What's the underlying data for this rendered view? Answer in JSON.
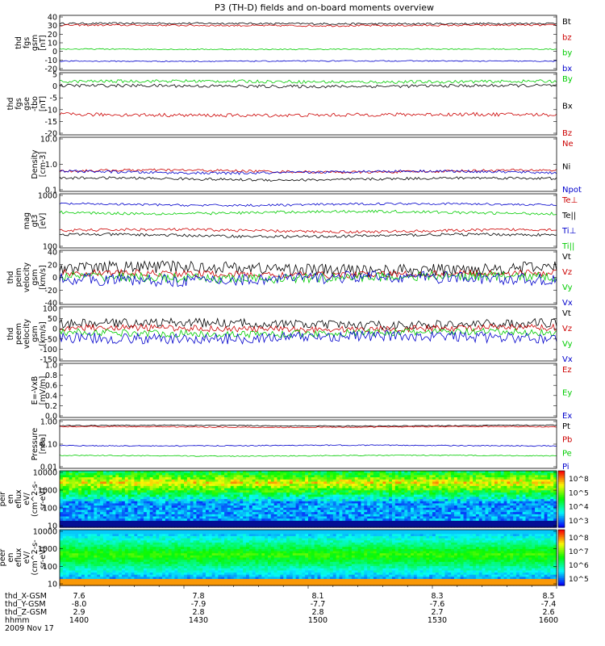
{
  "title": "P3 (TH-D) fields and on-board moments overview",
  "colors": {
    "black": "#000000",
    "red": "#cc0000",
    "green": "#00cc00",
    "blue": "#0000cc"
  },
  "chart_data": [
    {
      "type": "line",
      "ylabel": [
        "thd",
        "fgs",
        "gsm",
        "[nT]"
      ],
      "yticks": [
        "40",
        "30",
        "20",
        "10",
        "0",
        "-10",
        "-20"
      ],
      "ylim": [
        -20,
        40
      ],
      "series": [
        {
          "name": "Bt",
          "color": "#000000",
          "level": 31,
          "noise": 1
        },
        {
          "name": "bz",
          "color": "#cc0000",
          "level": 29,
          "noise": 1
        },
        {
          "name": "by",
          "color": "#00cc00",
          "level": 3,
          "noise": 0.6
        },
        {
          "name": "bx",
          "color": "#0000cc",
          "level": -10,
          "noise": 0.6
        }
      ]
    },
    {
      "type": "line",
      "ylabel": [
        "thd",
        "fgs",
        "gse",
        "-tbo",
        "[nT]"
      ],
      "yticks": [
        "5",
        "0",
        "-5",
        "-10",
        "-15",
        "-20"
      ],
      "ylim": [
        -23,
        5
      ],
      "series": [
        {
          "name": "By",
          "color": "#00cc00",
          "level": 1,
          "noise": 0.7
        },
        {
          "name": "Bx",
          "color": "#000000",
          "level": -1,
          "noise": 0.7
        },
        {
          "name": "Bz",
          "color": "#cc0000",
          "level": -14,
          "noise": 0.8
        }
      ]
    },
    {
      "type": "line",
      "scale": "log",
      "ylabel": [
        "Density",
        "[cm-3]"
      ],
      "yticks": [
        "10.0",
        "1.0",
        "0.1"
      ],
      "ylim": [
        0.1,
        12
      ],
      "series": [
        {
          "name": "Ne",
          "color": "#cc0000",
          "level": 0.6,
          "noise": 0.05
        },
        {
          "name": "Ni",
          "color": "#000000",
          "level": 0.3,
          "noise": 0.05
        },
        {
          "name": "Npot",
          "color": "#0000cc",
          "level": 0.55,
          "noise": 0.05
        }
      ]
    },
    {
      "type": "line",
      "scale": "log",
      "ylabel": [
        "mag",
        "gt3",
        "[eV]"
      ],
      "yticks": [
        "1000",
        "100"
      ],
      "ylim": [
        100,
        9000
      ],
      "series": [
        {
          "name": "Te⊥",
          "color": "#cc0000",
          "level": 420,
          "noise": 0.05
        },
        {
          "name": "Te||",
          "color": "#000000",
          "level": 280,
          "noise": 0.05
        },
        {
          "name": "Ti⊥",
          "color": "#0000cc",
          "level": 3700,
          "noise": 0.04
        },
        {
          "name": "Ti||",
          "color": "#00cc00",
          "level": 1900,
          "noise": 0.05
        }
      ]
    },
    {
      "type": "line",
      "ylabel": [
        "thd",
        "peim",
        "velocity",
        "gsm",
        "[km/s]"
      ],
      "yticks": [
        "40",
        "20",
        "0",
        "-20",
        "-40"
      ],
      "ylim": [
        -40,
        40
      ],
      "series": [
        {
          "name": "Vt",
          "color": "#000000",
          "level": 13,
          "noise": 9
        },
        {
          "name": "Vz",
          "color": "#cc0000",
          "level": 5,
          "noise": 5
        },
        {
          "name": "Vy",
          "color": "#00cc00",
          "level": 0,
          "noise": 7
        },
        {
          "name": "Vx",
          "color": "#0000cc",
          "level": -2,
          "noise": 9
        }
      ]
    },
    {
      "type": "line",
      "ylabel": [
        "thd",
        "peem",
        "velocity",
        "gsm",
        "[km/s]"
      ],
      "yticks": [
        "100",
        "50",
        "0",
        "-50",
        "-100",
        "-150"
      ],
      "ylim": [
        -150,
        150
      ],
      "series": [
        {
          "name": "Vt",
          "color": "#000000",
          "level": 55,
          "noise": 25
        },
        {
          "name": "Vz",
          "color": "#cc0000",
          "level": 30,
          "noise": 18
        },
        {
          "name": "Vy",
          "color": "#00cc00",
          "level": 5,
          "noise": 20
        },
        {
          "name": "Vx",
          "color": "#0000cc",
          "level": -20,
          "noise": 30
        }
      ]
    },
    {
      "type": "line",
      "ylabel": [
        "E=-VxB",
        "[mV/m]"
      ],
      "yticks": [
        "1.0",
        "0.8",
        "0.6",
        "0.4",
        "0.2",
        "0.0"
      ],
      "ylim": [
        0,
        1
      ],
      "series": [
        {
          "name": "Ez",
          "color": "#cc0000"
        },
        {
          "name": "Ey",
          "color": "#00cc00"
        },
        {
          "name": "Ex",
          "color": "#0000cc"
        }
      ]
    },
    {
      "type": "line",
      "scale": "log",
      "ylabel": [
        "Pressure",
        "[nPa]"
      ],
      "yticks": [
        "1.00",
        "0.10",
        "0.01"
      ],
      "ylim": [
        0.01,
        1.2
      ],
      "series": [
        {
          "name": "Pt",
          "color": "#000000",
          "level": 0.68,
          "noise": 0.02
        },
        {
          "name": "Pb",
          "color": "#cc0000",
          "level": 0.6,
          "noise": 0.02
        },
        {
          "name": "Pe",
          "color": "#00cc00",
          "level": 0.035,
          "noise": 0.02
        },
        {
          "name": "Pi",
          "color": "#0000cc",
          "level": 0.095,
          "noise": 0.02
        }
      ]
    },
    {
      "type": "heatmap",
      "ylabel": [
        "thd",
        "peir",
        "en",
        "eflux",
        "eV/",
        "(cm^2-s-",
        "sr-eV)"
      ],
      "yticks": [
        "10000",
        "1000",
        "100",
        "10"
      ],
      "colorbar_ticks": [
        "10^8",
        "10^5",
        "10^4",
        "10^3"
      ]
    },
    {
      "type": "heatmap",
      "ylabel": [
        "thd",
        "peer",
        "en",
        "eflux",
        "eV/",
        "(cm^2-s-",
        "sr-eV)"
      ],
      "yticks": [
        "10000",
        "1000",
        "100",
        "10"
      ],
      "colorbar_ticks": [
        "10^8",
        "10^7",
        "10^6",
        "10^5"
      ]
    }
  ],
  "x_axis": {
    "row_labels": [
      "thd_X-GSM",
      "thd_Y-GSM",
      "thd_Z-GSM",
      "hhmm",
      "2009 Nov 17"
    ],
    "columns": [
      [
        "7.6",
        "-8.0",
        "2.9",
        "1400"
      ],
      [
        "7.8",
        "-7.9",
        "2.8",
        "1430"
      ],
      [
        "8.1",
        "-7.7",
        "2.8",
        "1500"
      ],
      [
        "8.3",
        "-7.6",
        "2.7",
        "1530"
      ],
      [
        "8.5",
        "-7.4",
        "2.6",
        "1600"
      ]
    ]
  }
}
